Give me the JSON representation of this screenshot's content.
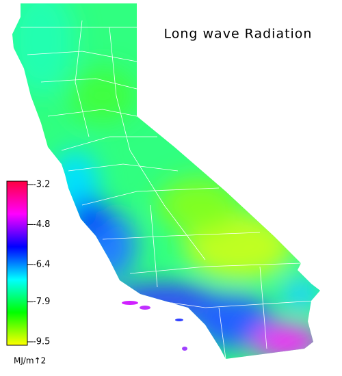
{
  "map": {
    "title": "Long wave Radiation",
    "colorbar": {
      "ticks": [
        -3.2,
        -4.8,
        -6.4,
        -7.9,
        -9.5
      ],
      "unit": "MJ/m↑2",
      "colors": [
        "#ff0040",
        "#ff00ff",
        "#0000ff",
        "#00ffff",
        "#00ff00",
        "#ffff00"
      ]
    }
  }
}
